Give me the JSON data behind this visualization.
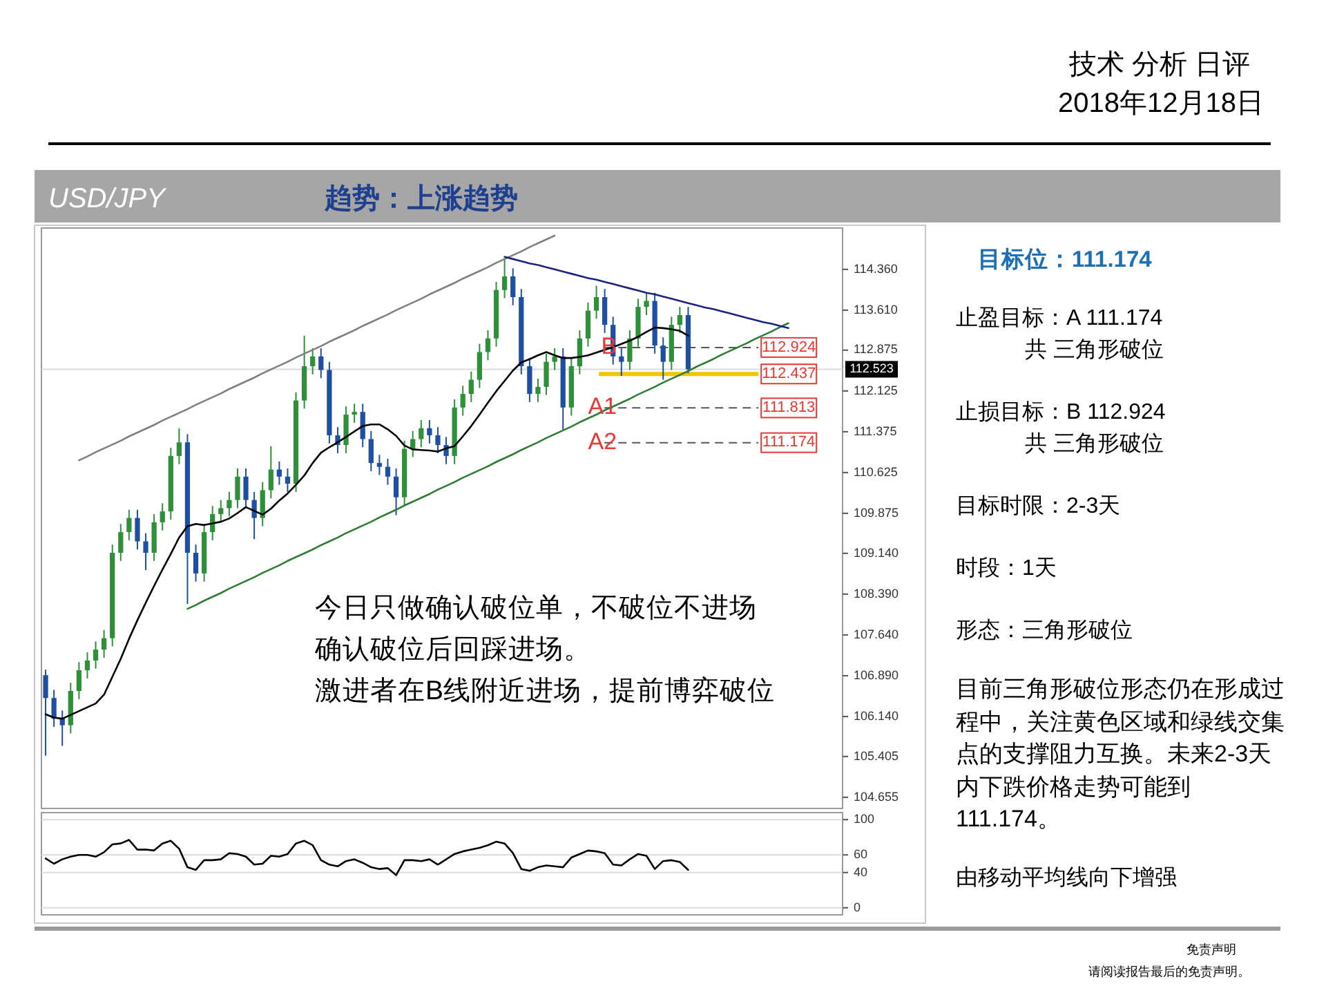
{
  "chart_data": [
    {
      "type": "candlestick",
      "title": "USD/JPY",
      "subtitle": "趋势：上涨趋势",
      "annotations": [
        "技术 分析 日评",
        "2018年12月18日",
        "今日只做确认破位单，不破位不进场",
        "确认破位后回踩进场。",
        "激进者在B线附近进场，提前博弈破位",
        {
          "text": "B",
          "y": 112.924
        },
        {
          "text": "A1",
          "y": 111.813
        },
        {
          "text": "A2",
          "y": 111.174
        },
        "免责声明",
        "请阅读报告最后的免责声明。"
      ],
      "categories": [
        null,
        null,
        null,
        null,
        null,
        null,
        null,
        null,
        null,
        null,
        null,
        null,
        null,
        null,
        null,
        null,
        null,
        null,
        null,
        null,
        null,
        null,
        null,
        null,
        null,
        null,
        null,
        null,
        null,
        null,
        null,
        null,
        null,
        null,
        null,
        null,
        null,
        null,
        null,
        null,
        null,
        null,
        null,
        null,
        null,
        null,
        null,
        null,
        null,
        null,
        null,
        null,
        null,
        null,
        null,
        null,
        null,
        null,
        null,
        null,
        null,
        null,
        null,
        null,
        null,
        null,
        null,
        null,
        null,
        null,
        null,
        null,
        null,
        null,
        null,
        null,
        null,
        null,
        null,
        null,
        null,
        null,
        null,
        null,
        null,
        null,
        null,
        null,
        null,
        null,
        null,
        null,
        null,
        null,
        null,
        null
      ],
      "ohlc": [
        [
          106.9,
          107.0,
          105.42,
          106.48
        ],
        [
          106.48,
          106.63,
          105.95,
          106.1
        ],
        [
          106.1,
          106.25,
          105.6,
          105.98
        ],
        [
          105.98,
          106.76,
          105.83,
          106.61
        ],
        [
          106.61,
          107.14,
          106.46,
          106.99
        ],
        [
          106.99,
          107.32,
          106.84,
          107.17
        ],
        [
          107.17,
          107.52,
          107.02,
          107.37
        ],
        [
          107.37,
          107.73,
          107.22,
          107.58
        ],
        [
          107.58,
          109.3,
          107.43,
          109.15
        ],
        [
          109.15,
          109.68,
          109.0,
          109.53
        ],
        [
          109.53,
          109.94,
          109.38,
          109.79
        ],
        [
          109.79,
          109.94,
          109.21,
          109.36
        ],
        [
          109.36,
          109.51,
          108.83,
          109.15
        ],
        [
          109.15,
          109.86,
          109.0,
          109.71
        ],
        [
          109.71,
          110.06,
          109.56,
          109.91
        ],
        [
          109.91,
          111.08,
          109.76,
          110.93
        ],
        [
          110.93,
          111.44,
          110.78,
          111.18
        ],
        [
          111.18,
          111.33,
          108.21,
          109.15
        ],
        [
          109.15,
          109.3,
          108.62,
          108.77
        ],
        [
          108.77,
          109.68,
          108.62,
          109.53
        ],
        [
          109.53,
          110.01,
          109.38,
          109.86
        ],
        [
          109.86,
          110.12,
          109.71,
          109.97
        ],
        [
          109.97,
          110.27,
          109.82,
          110.12
        ],
        [
          110.12,
          110.7,
          109.97,
          110.55
        ],
        [
          110.55,
          110.7,
          109.97,
          110.12
        ],
        [
          110.12,
          110.27,
          109.4,
          109.79
        ],
        [
          109.79,
          110.45,
          109.64,
          110.3
        ],
        [
          110.3,
          111.11,
          110.15,
          110.68
        ],
        [
          110.68,
          110.83,
          110.4,
          110.55
        ],
        [
          110.55,
          110.7,
          110.27,
          110.42
        ],
        [
          110.42,
          112.1,
          110.27,
          111.95
        ],
        [
          111.95,
          113.14,
          111.8,
          112.58
        ],
        [
          112.58,
          112.91,
          112.43,
          112.76
        ],
        [
          112.76,
          112.91,
          112.36,
          112.51
        ],
        [
          112.51,
          112.66,
          111.16,
          111.31
        ],
        [
          111.31,
          111.46,
          110.98,
          111.13
        ],
        [
          111.13,
          111.84,
          110.98,
          111.69
        ],
        [
          111.69,
          111.89,
          111.54,
          111.74
        ],
        [
          111.74,
          111.89,
          111.09,
          111.24
        ],
        [
          111.24,
          111.39,
          110.65,
          110.8
        ],
        [
          110.8,
          110.95,
          110.58,
          110.73
        ],
        [
          110.73,
          110.88,
          110.4,
          110.55
        ],
        [
          110.55,
          110.7,
          109.84,
          110.17
        ],
        [
          110.17,
          111.21,
          110.02,
          111.06
        ],
        [
          111.06,
          111.39,
          110.91,
          111.24
        ],
        [
          111.24,
          111.59,
          111.09,
          111.44
        ],
        [
          111.44,
          111.59,
          111.16,
          111.31
        ],
        [
          111.31,
          111.46,
          110.98,
          111.13
        ],
        [
          111.13,
          111.28,
          110.78,
          110.93
        ],
        [
          110.93,
          111.97,
          110.78,
          111.82
        ],
        [
          111.82,
          112.22,
          111.67,
          112.07
        ],
        [
          112.07,
          112.48,
          111.92,
          112.33
        ],
        [
          112.33,
          112.99,
          112.18,
          112.84
        ],
        [
          112.84,
          113.24,
          112.69,
          113.09
        ],
        [
          113.09,
          114.13,
          112.94,
          113.98
        ],
        [
          113.98,
          114.56,
          113.83,
          114.23
        ],
        [
          114.23,
          114.38,
          113.7,
          113.85
        ],
        [
          113.85,
          114.0,
          112.43,
          112.58
        ],
        [
          112.58,
          112.73,
          111.92,
          112.07
        ],
        [
          112.07,
          112.35,
          111.92,
          112.2
        ],
        [
          112.2,
          112.81,
          112.05,
          112.66
        ],
        [
          112.66,
          112.91,
          112.51,
          112.76
        ],
        [
          112.76,
          112.91,
          111.39,
          111.82
        ],
        [
          111.82,
          112.73,
          111.67,
          112.58
        ],
        [
          112.58,
          113.24,
          112.43,
          113.09
        ],
        [
          113.09,
          113.75,
          112.94,
          113.6
        ],
        [
          113.6,
          114.06,
          113.45,
          113.85
        ],
        [
          113.85,
          114.0,
          113.19,
          113.34
        ],
        [
          113.34,
          113.49,
          112.61,
          112.76
        ],
        [
          112.76,
          112.91,
          112.4,
          112.66
        ],
        [
          112.66,
          113.24,
          112.51,
          113.09
        ],
        [
          113.09,
          113.82,
          112.94,
          113.67
        ],
        [
          113.67,
          113.93,
          113.52,
          113.78
        ],
        [
          113.78,
          113.93,
          112.81,
          112.96
        ],
        [
          112.96,
          113.11,
          112.33,
          112.66
        ],
        [
          112.66,
          113.49,
          112.51,
          113.34
        ],
        [
          113.34,
          113.67,
          113.19,
          113.52
        ],
        [
          113.52,
          113.67,
          112.45,
          112.523
        ],
        null,
        null,
        null,
        null,
        null,
        null,
        null,
        null,
        null,
        null,
        null,
        null,
        null,
        null,
        null,
        null,
        null,
        null
      ],
      "series": [
        {
          "type": "line",
          "color": "#000000",
          "values": [
            106.18,
            106.12,
            106.1,
            106.17,
            106.24,
            106.31,
            106.38,
            106.54,
            106.87,
            107.2,
            107.57,
            107.91,
            108.23,
            108.54,
            108.84,
            109.13,
            109.43,
            109.64,
            109.68,
            109.66,
            109.69,
            109.72,
            109.78,
            109.88,
            109.99,
            109.92,
            109.85,
            109.96,
            110.11,
            110.24,
            110.4,
            110.57,
            110.8,
            110.99,
            111.09,
            111.18,
            111.28,
            111.38,
            111.48,
            111.51,
            111.51,
            111.42,
            111.3,
            111.12,
            111.05,
            111.04,
            111.03,
            111.01,
            111.07,
            111.11,
            111.29,
            111.48,
            111.69,
            111.91,
            112.12,
            112.31,
            112.5,
            112.65,
            112.71,
            112.78,
            112.84,
            112.78,
            112.73,
            112.73,
            112.75,
            112.78,
            112.83,
            112.88,
            112.93,
            112.99,
            113.05,
            113.12,
            113.21,
            113.29,
            113.28,
            113.26,
            113.23,
            113.14,
            null,
            null,
            null,
            null,
            null,
            null,
            null,
            null,
            null,
            null,
            null,
            null,
            null,
            null,
            null,
            null,
            null,
            null
          ]
        },
        {
          "type": "line",
          "color": "#808080",
          "values": [
            null,
            null,
            null,
            null,
            110.85,
            110.92,
            111.0,
            111.07,
            111.14,
            111.21,
            111.29,
            111.36,
            111.43,
            111.5,
            111.58,
            111.65,
            111.72,
            111.79,
            111.87,
            111.94,
            112.01,
            112.08,
            112.16,
            112.23,
            112.3,
            112.37,
            112.45,
            112.52,
            112.59,
            112.66,
            112.74,
            112.81,
            112.88,
            112.95,
            113.03,
            113.1,
            113.17,
            113.24,
            113.32,
            113.39,
            113.46,
            113.53,
            113.61,
            113.68,
            113.75,
            113.82,
            113.9,
            113.97,
            114.04,
            114.11,
            114.19,
            114.26,
            114.33,
            114.4,
            114.48,
            114.55,
            114.62,
            114.69,
            114.77,
            114.84,
            114.91,
            114.98,
            null,
            null,
            null,
            null,
            null,
            null,
            null,
            null,
            null,
            null,
            null,
            null,
            null,
            null,
            null,
            null,
            null,
            null,
            null,
            null,
            null,
            null,
            null,
            null,
            null,
            null,
            null,
            null,
            null,
            null,
            null,
            null,
            null,
            null
          ]
        },
        {
          "type": "line",
          "color": "#2e7d32",
          "values": [
            null,
            null,
            null,
            null,
            null,
            null,
            null,
            null,
            null,
            null,
            null,
            null,
            null,
            null,
            null,
            null,
            null,
            108.12,
            108.19,
            108.27,
            108.34,
            108.41,
            108.49,
            108.56,
            108.63,
            108.7,
            108.78,
            108.85,
            108.92,
            109.0,
            109.07,
            109.14,
            109.21,
            109.29,
            109.36,
            109.43,
            109.51,
            109.58,
            109.65,
            109.72,
            109.8,
            109.87,
            109.94,
            110.02,
            110.09,
            110.16,
            110.23,
            110.31,
            110.38,
            110.45,
            110.53,
            110.6,
            110.67,
            110.74,
            110.82,
            110.89,
            110.96,
            111.04,
            111.11,
            111.18,
            111.26,
            111.33,
            111.4,
            111.47,
            111.55,
            111.62,
            111.69,
            111.77,
            111.84,
            111.91,
            111.98,
            112.06,
            112.13,
            112.2,
            112.28,
            112.35,
            112.42,
            112.49,
            112.57,
            112.64,
            112.71,
            112.79,
            112.86,
            112.93,
            113.0,
            113.08,
            113.15,
            113.22,
            113.3,
            113.37,
            null,
            null,
            null,
            null,
            null,
            null
          ]
        },
        {
          "type": "line",
          "color": "#1a237e",
          "values": [
            null,
            null,
            null,
            null,
            null,
            null,
            null,
            null,
            null,
            null,
            null,
            null,
            null,
            null,
            null,
            null,
            null,
            null,
            null,
            null,
            null,
            null,
            null,
            null,
            null,
            null,
            null,
            null,
            null,
            null,
            null,
            null,
            null,
            null,
            null,
            null,
            null,
            null,
            null,
            null,
            null,
            null,
            null,
            null,
            null,
            null,
            null,
            null,
            null,
            null,
            null,
            null,
            null,
            null,
            null,
            114.59,
            114.55,
            114.51,
            114.47,
            114.44,
            114.4,
            114.36,
            114.32,
            114.28,
            114.24,
            114.2,
            114.17,
            114.13,
            114.09,
            114.05,
            114.01,
            113.97,
            113.93,
            113.9,
            113.86,
            113.82,
            113.78,
            113.74,
            113.7,
            113.66,
            113.63,
            113.59,
            113.55,
            113.51,
            113.47,
            113.43,
            113.39,
            113.36,
            113.32,
            113.28,
            null,
            null,
            null,
            null,
            null,
            null
          ]
        }
      ],
      "ylim": [
        104.45,
        115.12
      ],
      "yticks": [
        {
          "value": 104.655,
          "label": "104.655"
        },
        {
          "value": 105.405,
          "label": "105.405"
        },
        {
          "value": 106.14,
          "label": "106.140"
        },
        {
          "value": 106.89,
          "label": "106.890"
        },
        {
          "value": 107.64,
          "label": "107.640"
        },
        {
          "value": 108.39,
          "label": "108.390"
        },
        {
          "value": 109.14,
          "label": "109.140"
        },
        {
          "value": 109.875,
          "label": "109.875"
        },
        {
          "value": 110.625,
          "label": "110.625"
        },
        {
          "value": 111.375,
          "label": "111.375"
        },
        {
          "value": 112.125,
          "label": "112.125"
        },
        {
          "value": 112.875,
          "label": "112.875"
        },
        {
          "value": 113.61,
          "label": "113.610"
        },
        {
          "value": 114.36,
          "label": "114.360"
        }
      ],
      "ref_lines": [
        {
          "axis": "y",
          "value": 112.523,
          "label": "112.523",
          "color": "#d9d9d9"
        },
        {
          "axis": "y",
          "value": 112.924,
          "label": "112.924",
          "color": "#555555",
          "line_style": "dashed"
        },
        {
          "axis": "y",
          "value": 112.437,
          "label": "112.437",
          "color": "#f5c400",
          "line_style": "solid"
        },
        {
          "axis": "y",
          "value": 111.813,
          "label": "111.813",
          "color": "#555555",
          "line_style": "dashed"
        },
        {
          "axis": "y",
          "value": 111.174,
          "label": "111.174",
          "color": "#555555",
          "line_style": "dashed"
        }
      ],
      "tick_labels": "y"
    },
    {
      "type": "line",
      "categories": [
        null,
        null,
        null,
        null,
        null,
        null,
        null,
        null,
        null,
        null,
        null,
        null,
        null,
        null,
        null,
        null,
        null,
        null,
        null,
        null,
        null,
        null,
        null,
        null,
        null,
        null,
        null,
        null,
        null,
        null,
        null,
        null,
        null,
        null,
        null,
        null,
        null,
        null,
        null,
        null,
        null,
        null,
        null,
        null,
        null,
        null,
        null,
        null,
        null,
        null,
        null,
        null,
        null,
        null,
        null,
        null,
        null,
        null,
        null,
        null,
        null,
        null,
        null,
        null,
        null,
        null,
        null,
        null,
        null,
        null,
        null,
        null,
        null,
        null,
        null,
        null,
        null,
        null,
        null,
        null,
        null,
        null,
        null,
        null,
        null,
        null,
        null,
        null,
        null,
        null,
        null,
        null,
        null,
        null,
        null,
        null
      ],
      "series": [
        {
          "color": "#000000",
          "values": [
            56,
            50,
            55,
            58,
            60,
            60,
            58,
            63,
            72,
            73,
            77,
            66,
            66,
            65,
            73,
            76,
            67,
            46,
            43,
            54,
            54,
            55,
            62,
            61,
            58,
            49,
            50,
            59,
            58,
            61,
            73,
            76,
            71,
            54,
            49,
            47,
            53,
            55,
            51,
            46,
            44,
            45,
            37,
            54,
            54,
            53,
            55,
            49,
            55,
            61,
            64,
            66,
            68,
            71,
            75,
            73,
            62,
            44,
            42,
            46,
            48,
            47,
            46,
            57,
            61,
            65,
            64,
            62,
            49,
            48,
            55,
            61,
            59,
            44,
            53,
            54,
            52,
            43,
            null,
            null,
            null,
            null,
            null,
            null,
            null,
            null,
            null,
            null,
            null,
            null,
            null,
            null,
            null,
            null,
            null,
            null
          ]
        }
      ],
      "ylim": [
        -8,
        108
      ],
      "yticks": [
        0,
        40,
        60,
        100
      ],
      "grid": "y",
      "tick_labels": "y"
    },
    {
      "type": "other",
      "title": "目标位：111.174",
      "annotations": [
        "止盈目标：A 111.174",
        "共 三角形破位",
        "止损目标：B 112.924",
        "共 三角形破位",
        "目标时限：2-3天",
        "时段：1天",
        "形态：三角形破位",
        "目前三角形破位形态仍在形成过程中，关注黄色区域和绿线交集点的支撑阻力互换。未来2-3天内下跌价格走势可能到111.174。",
        "由移动平均线向下增强"
      ]
    }
  ]
}
